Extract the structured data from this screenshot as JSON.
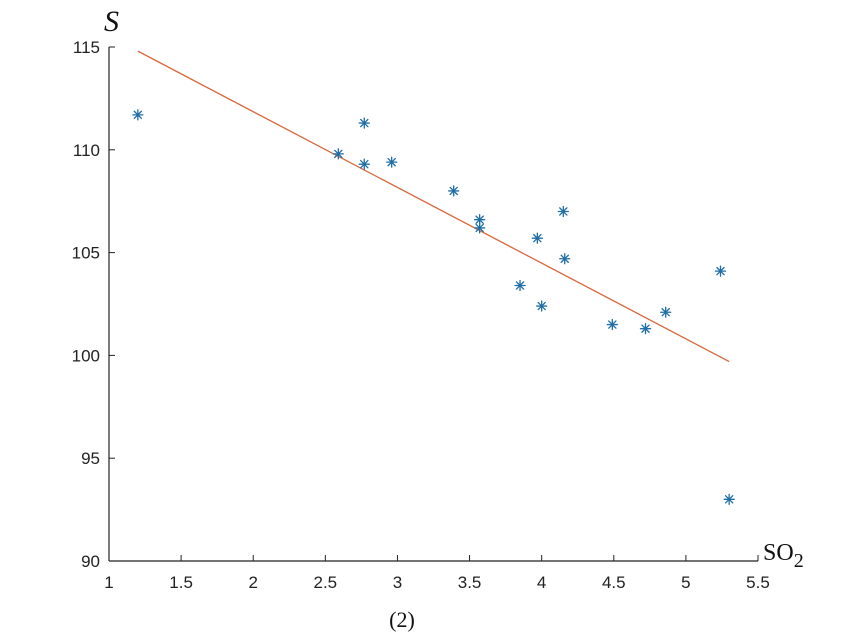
{
  "chart_data": {
    "type": "scatter",
    "title": "",
    "caption": "(2)",
    "ylabel": "S",
    "xlabel_main": "SO",
    "xlabel_sub": "2",
    "xlim": [
      1,
      5.5
    ],
    "ylim": [
      90,
      115
    ],
    "xticks": [
      1,
      1.5,
      2,
      2.5,
      3,
      3.5,
      4,
      4.5,
      5,
      5.5
    ],
    "xtick_labels": [
      "1",
      "1.5",
      "2",
      "2.5",
      "3",
      "3.5",
      "4",
      "4.5",
      "5",
      "5.5"
    ],
    "yticks": [
      90,
      95,
      100,
      105,
      110,
      115
    ],
    "ytick_labels": [
      "90",
      "95",
      "100",
      "105",
      "110",
      "115"
    ],
    "grid": false,
    "series": [
      {
        "kind": "points",
        "marker": "asterisk",
        "color": "#1f6ea6",
        "x": [
          1.2,
          2.59,
          2.77,
          2.77,
          2.96,
          3.39,
          3.57,
          3.57,
          3.85,
          3.97,
          4.0,
          4.15,
          4.16,
          4.49,
          4.72,
          4.86,
          5.24,
          5.3
        ],
        "y": [
          111.7,
          109.8,
          111.3,
          109.3,
          109.4,
          108.0,
          106.6,
          106.2,
          103.4,
          105.7,
          102.4,
          107.0,
          104.7,
          101.5,
          101.3,
          102.1,
          104.1,
          93.0
        ]
      },
      {
        "kind": "line",
        "color": "#d9673b",
        "x": [
          1.2,
          5.3
        ],
        "y": [
          114.8,
          99.7
        ]
      }
    ]
  }
}
